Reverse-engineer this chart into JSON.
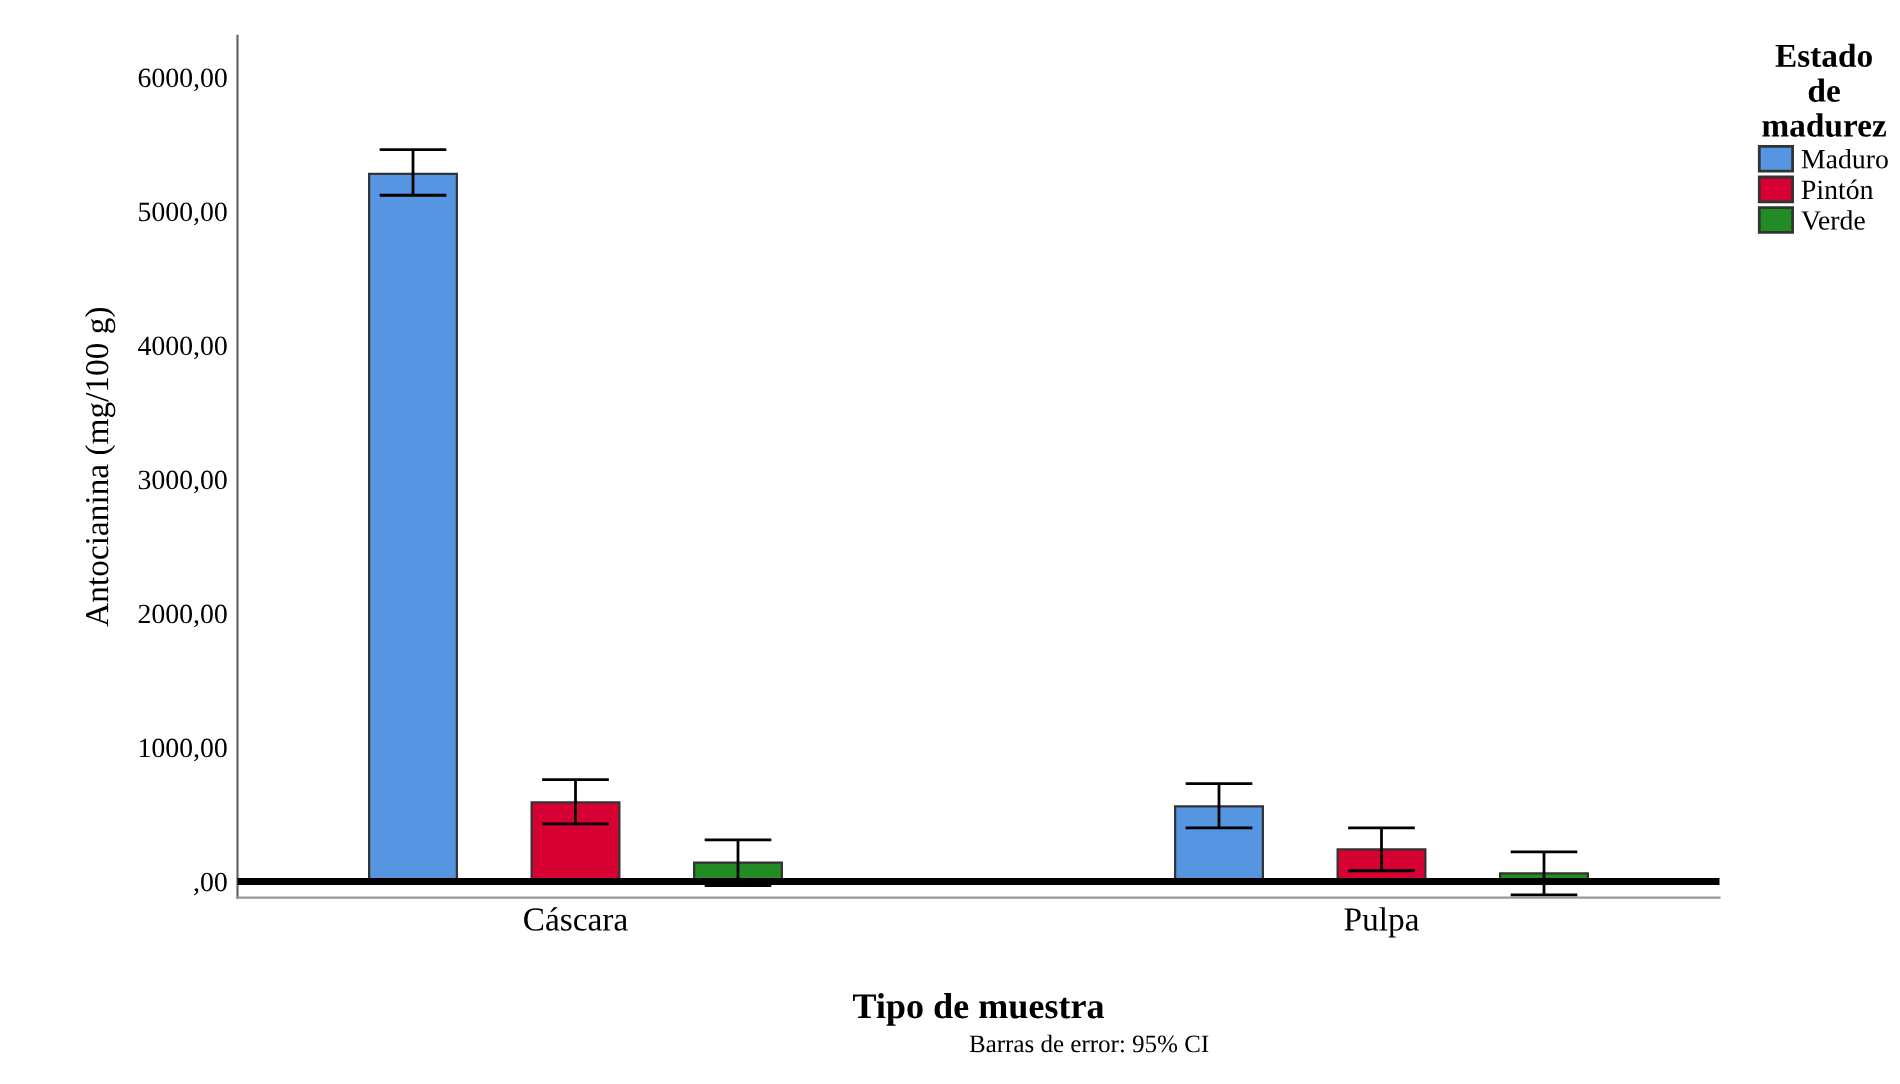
{
  "chart_data": {
    "type": "bar",
    "xlabel": "Tipo de muestra",
    "ylabel": "Antocianina (mg/100 g)",
    "legend_title": "Estado\nde\nmadurez",
    "categories": [
      "Cáscara",
      "Pulpa"
    ],
    "series": [
      {
        "name": "Maduro",
        "color": "#5595e2",
        "values": [
          5280,
          560
        ],
        "errors": [
          [
            5120,
            5460
          ],
          [
            400,
            730
          ]
        ]
      },
      {
        "name": "Pintón",
        "color": "#d70032",
        "values": [
          590,
          240
        ],
        "errors": [
          [
            430,
            760
          ],
          [
            80,
            400
          ]
        ]
      },
      {
        "name": "Verde",
        "color": "#238b23",
        "values": [
          140,
          60
        ],
        "errors": [
          [
            -30,
            310
          ],
          [
            -100,
            220
          ]
        ]
      }
    ],
    "ylim": [
      -120,
      6310
    ],
    "yticks": [
      {
        "value": 0,
        "label": ",00"
      },
      {
        "value": 1000,
        "label": "1000,00"
      },
      {
        "value": 2000,
        "label": "2000,00"
      },
      {
        "value": 3000,
        "label": "3000,00"
      },
      {
        "value": 4000,
        "label": "4000,00"
      },
      {
        "value": 5000,
        "label": "5000,00"
      },
      {
        "value": 6000,
        "label": "6000,00"
      }
    ],
    "ref_lines": [
      {
        "axis": "y",
        "value": 0,
        "color": "#000000"
      }
    ],
    "grid": false,
    "legend": "top right",
    "annotations": [
      "Barras de error: 95% CI"
    ]
  }
}
